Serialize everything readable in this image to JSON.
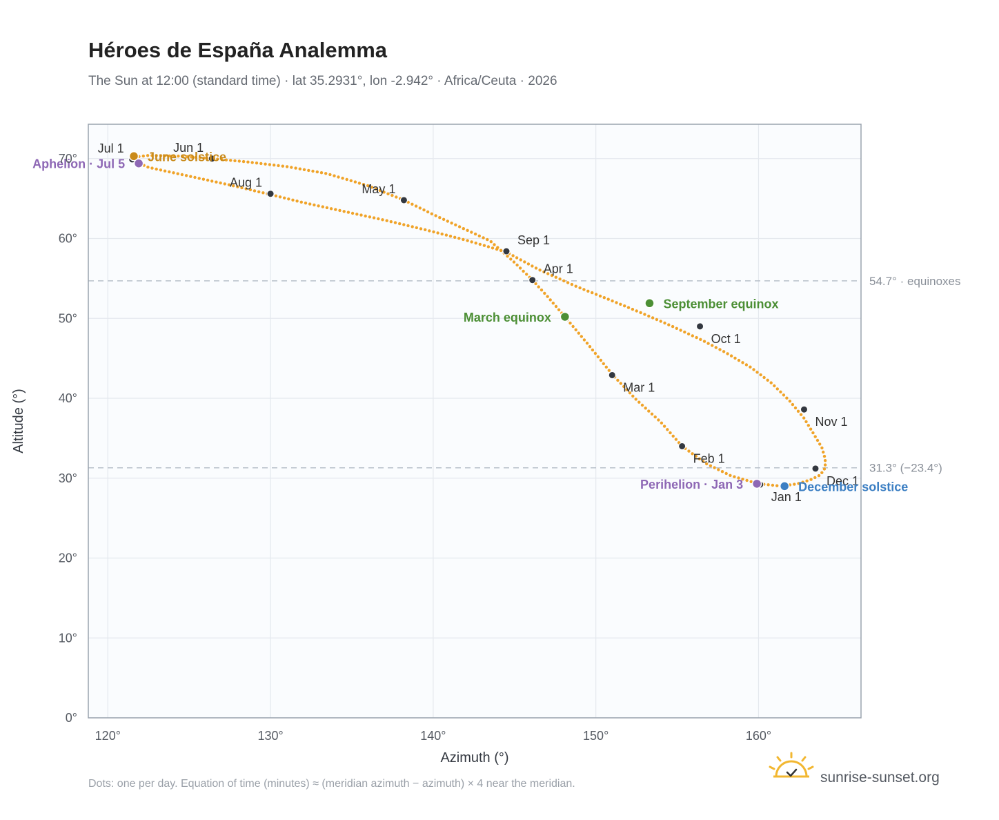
{
  "chart_data": {
    "type": "scatter",
    "title": "Héroes de España Analemma",
    "subtitle": "The Sun at 12:00 (standard time) · lat 35.2931°, lon -2.942° · Africa/Ceuta · 2026",
    "xlabel": "Azimuth (°)",
    "ylabel": "Altitude (°)",
    "xlim": [
      118.8,
      166.3
    ],
    "ylim": [
      0,
      74.3
    ],
    "xticks": [
      {
        "value": 120,
        "label": "120°"
      },
      {
        "value": 130,
        "label": "130°"
      },
      {
        "value": 140,
        "label": "140°"
      },
      {
        "value": 150,
        "label": "150°"
      },
      {
        "value": 160,
        "label": "160°"
      }
    ],
    "yticks": [
      {
        "value": 0,
        "label": "0°"
      },
      {
        "value": 10,
        "label": "10°"
      },
      {
        "value": 20,
        "label": "20°"
      },
      {
        "value": 30,
        "label": "30°"
      },
      {
        "value": 40,
        "label": "40°"
      },
      {
        "value": 50,
        "label": "50°"
      },
      {
        "value": 60,
        "label": "60°"
      },
      {
        "value": 70,
        "label": "70°"
      }
    ],
    "grid": true,
    "reference_lines": [
      {
        "y": 54.7,
        "label": "54.7° · equinoxes"
      },
      {
        "y": 31.3,
        "label": "31.3° (−23.4°)"
      }
    ],
    "series": [
      {
        "color": "#f0a328",
        "points": [
          [
            161.4,
            29.0
          ],
          [
            162.4,
            29.3
          ],
          [
            163.2,
            29.8
          ],
          [
            163.8,
            30.4
          ],
          [
            164.1,
            31.3
          ],
          [
            164.1,
            32.4
          ],
          [
            163.9,
            33.8
          ],
          [
            163.4,
            35.5
          ],
          [
            162.8,
            37.5
          ],
          [
            161.9,
            39.7
          ],
          [
            160.8,
            41.9
          ],
          [
            159.5,
            43.9
          ],
          [
            158.0,
            45.7
          ],
          [
            156.5,
            47.3
          ],
          [
            154.7,
            49.0
          ],
          [
            152.9,
            50.6
          ],
          [
            151.0,
            52.2
          ],
          [
            148.8,
            54.0
          ],
          [
            146.5,
            56.1
          ],
          [
            144.5,
            58.3
          ],
          [
            142.0,
            59.8
          ],
          [
            139.5,
            61.1
          ],
          [
            137.0,
            62.3
          ],
          [
            134.5,
            63.4
          ],
          [
            132.0,
            64.5
          ],
          [
            130.0,
            65.5
          ],
          [
            127.5,
            66.7
          ],
          [
            125.0,
            67.8
          ],
          [
            122.5,
            68.9
          ],
          [
            121.7,
            69.6
          ],
          [
            121.7,
            70.2
          ],
          [
            122.5,
            70.4
          ],
          [
            124.5,
            70.3
          ],
          [
            126.4,
            70.0
          ],
          [
            128.5,
            69.6
          ],
          [
            131.0,
            69.0
          ],
          [
            133.5,
            68.1
          ],
          [
            136.0,
            66.6
          ],
          [
            138.2,
            64.8
          ],
          [
            140.0,
            63.0
          ],
          [
            141.8,
            61.3
          ],
          [
            143.5,
            59.7
          ],
          [
            145.0,
            57.0
          ],
          [
            146.1,
            54.8
          ],
          [
            147.0,
            52.8
          ],
          [
            148.1,
            50.2
          ],
          [
            149.5,
            46.8
          ],
          [
            151.0,
            43.0
          ],
          [
            152.5,
            39.8
          ],
          [
            154.0,
            37.0
          ],
          [
            155.3,
            34.0
          ],
          [
            156.8,
            31.8
          ],
          [
            158.3,
            30.3
          ],
          [
            160.0,
            29.3
          ],
          [
            161.4,
            29.0
          ]
        ]
      }
    ],
    "month_markers": [
      {
        "label": "Jan 1",
        "x": 160.1,
        "y": 29.2,
        "anchor": "below-right"
      },
      {
        "label": "Feb 1",
        "x": 155.3,
        "y": 34.0,
        "anchor": "below-right"
      },
      {
        "label": "Mar 1",
        "x": 151.0,
        "y": 42.9,
        "anchor": "below-right"
      },
      {
        "label": "Apr 1",
        "x": 146.1,
        "y": 54.8,
        "anchor": "above-right"
      },
      {
        "label": "May 1",
        "x": 138.2,
        "y": 64.8,
        "anchor": "above-left"
      },
      {
        "label": "Jun 1",
        "x": 126.4,
        "y": 70.0,
        "anchor": "above-left"
      },
      {
        "label": "Jul 1",
        "x": 121.5,
        "y": 69.9,
        "anchor": "above-left"
      },
      {
        "label": "Aug 1",
        "x": 130.0,
        "y": 65.6,
        "anchor": "above-left"
      },
      {
        "label": "Sep 1",
        "x": 144.5,
        "y": 58.4,
        "anchor": "above-right"
      },
      {
        "label": "Oct 1",
        "x": 156.4,
        "y": 49.0,
        "anchor": "below-right"
      },
      {
        "label": "Nov 1",
        "x": 162.8,
        "y": 38.6,
        "anchor": "below-right"
      },
      {
        "label": "Dec 1",
        "x": 163.5,
        "y": 31.2,
        "anchor": "below-right"
      }
    ],
    "events": [
      {
        "label": "June solstice",
        "x": 121.6,
        "y": 70.3,
        "color": "#c98a1a",
        "anchor": "right"
      },
      {
        "label": "Aphelion · Jul 5",
        "x": 121.9,
        "y": 69.4,
        "color": "#8e68b5",
        "anchor": "left"
      },
      {
        "label": "March equinox",
        "x": 148.1,
        "y": 50.2,
        "color": "#4c8f35",
        "anchor": "left"
      },
      {
        "label": "September equinox",
        "x": 153.3,
        "y": 51.9,
        "color": "#4c8f35",
        "anchor": "right"
      },
      {
        "label": "Perihelion · Jan 3",
        "x": 159.9,
        "y": 29.3,
        "color": "#8e68b5",
        "anchor": "left"
      },
      {
        "label": "December solstice",
        "x": 161.6,
        "y": 29.0,
        "color": "#3c7fc3",
        "anchor": "right"
      }
    ]
  },
  "footnote": "Dots: one per day. Equation of time (minutes) ≈ (meridian azimuth − azimuth) × 4 near the meridian.",
  "brand": {
    "name": "sunrise-sunset.org",
    "icon": "sun-checkmark-icon",
    "color": "#f2b731"
  }
}
